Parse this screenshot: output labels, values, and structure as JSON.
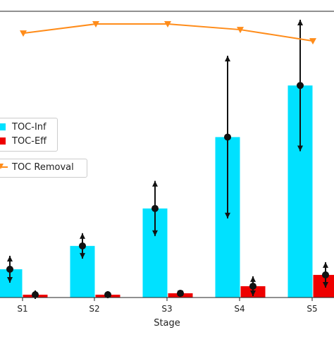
{
  "chart_data": {
    "type": "bar",
    "xlabel": "Stage",
    "categories": [
      "S1",
      "S2",
      "S3",
      "S4",
      "S5"
    ],
    "series": [
      {
        "name": "TOC-Inf",
        "kind": "bar",
        "color": "#00e1ff",
        "values": [
          40,
          73,
          126,
          227,
          300
        ],
        "error": [
          19,
          18,
          39,
          115,
          93
        ]
      },
      {
        "name": "TOC-Eff",
        "kind": "bar",
        "color": "#ee0000",
        "values": [
          4,
          4,
          6,
          16,
          32
        ],
        "error": [
          6,
          5,
          4,
          14,
          18
        ]
      },
      {
        "name": "TOC Removal",
        "kind": "line",
        "color": "#ff8c1a",
        "marker": "triangle-down",
        "values": [
          374,
          387,
          387,
          379,
          363
        ]
      }
    ],
    "ylim": [
      0,
      405
    ],
    "grid": false,
    "legend_placement": "center-left"
  }
}
